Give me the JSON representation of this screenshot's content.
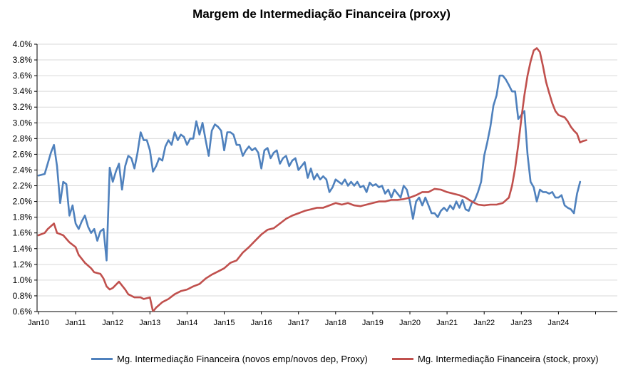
{
  "chart_data": {
    "type": "line",
    "title": "Margem de Intermediação Financeira (proxy)",
    "xlabel": "",
    "ylabel": "",
    "ylim": [
      0.6,
      4.0
    ],
    "yticks": [
      "4.0%",
      "3.8%",
      "3.6%",
      "3.4%",
      "3.2%",
      "3.0%",
      "2.8%",
      "2.6%",
      "2.4%",
      "2.2%",
      "2.0%",
      "1.8%",
      "1.6%",
      "1.4%",
      "1.2%",
      "1.0%",
      "0.8%",
      "0.6%"
    ],
    "xticks": [
      "Jan10",
      "Jan11",
      "Jan12",
      "Jan13",
      "Jan14",
      "Jan15",
      "Jan16",
      "Jan17",
      "Jan18",
      "Jan19",
      "Jan20",
      "Jan21",
      "Jan22",
      "Jan23",
      "Jan24"
    ],
    "grid": true,
    "legend_position": "bottom",
    "series": [
      {
        "name": "Mg. Intermediação Financeira (novos emp/novos dep, Proxy)",
        "color": "#4F81BD",
        "points": [
          [
            0,
            2.33
          ],
          [
            2,
            2.35
          ],
          [
            4,
            2.62
          ],
          [
            5,
            2.72
          ],
          [
            6,
            2.45
          ],
          [
            7,
            1.98
          ],
          [
            8,
            2.25
          ],
          [
            9,
            2.22
          ],
          [
            10,
            1.82
          ],
          [
            11,
            1.95
          ],
          [
            12,
            1.72
          ],
          [
            13,
            1.65
          ],
          [
            14,
            1.75
          ],
          [
            15,
            1.82
          ],
          [
            16,
            1.68
          ],
          [
            17,
            1.6
          ],
          [
            18,
            1.65
          ],
          [
            19,
            1.5
          ],
          [
            20,
            1.62
          ],
          [
            21,
            1.65
          ],
          [
            22,
            1.25
          ],
          [
            23,
            2.43
          ],
          [
            24,
            2.25
          ],
          [
            25,
            2.38
          ],
          [
            26,
            2.48
          ],
          [
            27,
            2.15
          ],
          [
            28,
            2.45
          ],
          [
            29,
            2.58
          ],
          [
            30,
            2.55
          ],
          [
            31,
            2.42
          ],
          [
            32,
            2.62
          ],
          [
            33,
            2.88
          ],
          [
            34,
            2.78
          ],
          [
            35,
            2.78
          ],
          [
            36,
            2.65
          ],
          [
            37,
            2.38
          ],
          [
            38,
            2.45
          ],
          [
            39,
            2.55
          ],
          [
            40,
            2.52
          ],
          [
            41,
            2.7
          ],
          [
            42,
            2.78
          ],
          [
            43,
            2.72
          ],
          [
            44,
            2.88
          ],
          [
            45,
            2.78
          ],
          [
            46,
            2.85
          ],
          [
            47,
            2.82
          ],
          [
            48,
            2.72
          ],
          [
            49,
            2.8
          ],
          [
            50,
            2.8
          ],
          [
            51,
            3.02
          ],
          [
            52,
            2.85
          ],
          [
            53,
            3.0
          ],
          [
            54,
            2.78
          ],
          [
            55,
            2.58
          ],
          [
            56,
            2.9
          ],
          [
            57,
            2.98
          ],
          [
            58,
            2.95
          ],
          [
            59,
            2.9
          ],
          [
            60,
            2.65
          ],
          [
            61,
            2.88
          ],
          [
            62,
            2.88
          ],
          [
            63,
            2.85
          ],
          [
            64,
            2.72
          ],
          [
            65,
            2.72
          ],
          [
            66,
            2.58
          ],
          [
            67,
            2.65
          ],
          [
            68,
            2.7
          ],
          [
            69,
            2.65
          ],
          [
            70,
            2.68
          ],
          [
            71,
            2.62
          ],
          [
            72,
            2.42
          ],
          [
            73,
            2.65
          ],
          [
            74,
            2.68
          ],
          [
            75,
            2.55
          ],
          [
            76,
            2.62
          ],
          [
            77,
            2.65
          ],
          [
            78,
            2.48
          ],
          [
            79,
            2.55
          ],
          [
            80,
            2.58
          ],
          [
            81,
            2.45
          ],
          [
            82,
            2.52
          ],
          [
            83,
            2.55
          ],
          [
            84,
            2.4
          ],
          [
            85,
            2.45
          ],
          [
            86,
            2.5
          ],
          [
            87,
            2.3
          ],
          [
            88,
            2.42
          ],
          [
            89,
            2.28
          ],
          [
            90,
            2.35
          ],
          [
            91,
            2.28
          ],
          [
            92,
            2.32
          ],
          [
            93,
            2.28
          ],
          [
            94,
            2.12
          ],
          [
            95,
            2.18
          ],
          [
            96,
            2.28
          ],
          [
            97,
            2.25
          ],
          [
            98,
            2.22
          ],
          [
            99,
            2.28
          ],
          [
            100,
            2.2
          ],
          [
            101,
            2.25
          ],
          [
            102,
            2.2
          ],
          [
            103,
            2.25
          ],
          [
            104,
            2.18
          ],
          [
            105,
            2.2
          ],
          [
            106,
            2.12
          ],
          [
            107,
            2.24
          ],
          [
            108,
            2.2
          ],
          [
            109,
            2.22
          ],
          [
            110,
            2.18
          ],
          [
            111,
            2.2
          ],
          [
            112,
            2.1
          ],
          [
            113,
            2.15
          ],
          [
            114,
            2.05
          ],
          [
            115,
            2.15
          ],
          [
            116,
            2.1
          ],
          [
            117,
            2.05
          ],
          [
            118,
            2.2
          ],
          [
            119,
            2.15
          ],
          [
            120,
            2.0
          ],
          [
            121,
            1.78
          ],
          [
            122,
            2.0
          ],
          [
            123,
            2.05
          ],
          [
            124,
            1.95
          ],
          [
            125,
            2.05
          ],
          [
            126,
            1.95
          ],
          [
            127,
            1.85
          ],
          [
            128,
            1.85
          ],
          [
            129,
            1.8
          ],
          [
            130,
            1.88
          ],
          [
            131,
            1.92
          ],
          [
            132,
            1.88
          ],
          [
            133,
            1.95
          ],
          [
            134,
            1.9
          ],
          [
            135,
            2.0
          ],
          [
            136,
            1.92
          ],
          [
            137,
            2.02
          ],
          [
            138,
            1.9
          ],
          [
            139,
            1.88
          ],
          [
            140,
            1.98
          ],
          [
            141,
            2.02
          ],
          [
            142,
            2.12
          ],
          [
            143,
            2.25
          ],
          [
            144,
            2.58
          ],
          [
            145,
            2.75
          ],
          [
            146,
            2.95
          ],
          [
            147,
            3.22
          ],
          [
            148,
            3.35
          ],
          [
            149,
            3.6
          ],
          [
            150,
            3.6
          ],
          [
            151,
            3.55
          ],
          [
            152,
            3.48
          ],
          [
            153,
            3.4
          ],
          [
            154,
            3.4
          ],
          [
            155,
            3.05
          ],
          [
            156,
            3.1
          ],
          [
            157,
            3.15
          ],
          [
            158,
            2.6
          ],
          [
            159,
            2.25
          ],
          [
            160,
            2.18
          ],
          [
            161,
            2.0
          ],
          [
            162,
            2.15
          ],
          [
            163,
            2.12
          ],
          [
            164,
            2.12
          ],
          [
            165,
            2.1
          ],
          [
            166,
            2.12
          ],
          [
            167,
            2.05
          ],
          [
            168,
            2.05
          ],
          [
            169,
            2.08
          ],
          [
            170,
            1.95
          ],
          [
            171,
            1.92
          ],
          [
            172,
            1.9
          ],
          [
            173,
            1.85
          ],
          [
            174,
            2.1
          ],
          [
            175,
            2.25
          ]
        ]
      },
      {
        "name": "Mg. Intermediação Financeira (stock, proxy)",
        "color": "#C0504D",
        "points": [
          [
            0,
            1.57
          ],
          [
            2,
            1.6
          ],
          [
            3,
            1.65
          ],
          [
            5,
            1.72
          ],
          [
            6,
            1.6
          ],
          [
            8,
            1.57
          ],
          [
            10,
            1.48
          ],
          [
            12,
            1.42
          ],
          [
            13,
            1.32
          ],
          [
            15,
            1.22
          ],
          [
            17,
            1.15
          ],
          [
            18,
            1.1
          ],
          [
            20,
            1.08
          ],
          [
            21,
            1.02
          ],
          [
            22,
            0.92
          ],
          [
            23,
            0.88
          ],
          [
            24,
            0.9
          ],
          [
            26,
            0.98
          ],
          [
            28,
            0.88
          ],
          [
            29,
            0.82
          ],
          [
            31,
            0.78
          ],
          [
            33,
            0.78
          ],
          [
            34,
            0.76
          ],
          [
            36,
            0.78
          ],
          [
            37,
            0.6
          ],
          [
            38,
            0.65
          ],
          [
            40,
            0.72
          ],
          [
            42,
            0.76
          ],
          [
            44,
            0.82
          ],
          [
            46,
            0.86
          ],
          [
            48,
            0.88
          ],
          [
            50,
            0.92
          ],
          [
            52,
            0.95
          ],
          [
            54,
            1.02
          ],
          [
            56,
            1.07
          ],
          [
            58,
            1.11
          ],
          [
            60,
            1.15
          ],
          [
            62,
            1.22
          ],
          [
            64,
            1.25
          ],
          [
            66,
            1.35
          ],
          [
            68,
            1.42
          ],
          [
            70,
            1.5
          ],
          [
            72,
            1.58
          ],
          [
            74,
            1.64
          ],
          [
            76,
            1.66
          ],
          [
            78,
            1.72
          ],
          [
            80,
            1.78
          ],
          [
            82,
            1.82
          ],
          [
            84,
            1.85
          ],
          [
            86,
            1.88
          ],
          [
            88,
            1.9
          ],
          [
            90,
            1.92
          ],
          [
            92,
            1.92
          ],
          [
            94,
            1.95
          ],
          [
            96,
            1.98
          ],
          [
            98,
            1.96
          ],
          [
            100,
            1.98
          ],
          [
            102,
            1.95
          ],
          [
            104,
            1.94
          ],
          [
            106,
            1.96
          ],
          [
            108,
            1.98
          ],
          [
            110,
            2.0
          ],
          [
            112,
            2.0
          ],
          [
            114,
            2.02
          ],
          [
            116,
            2.02
          ],
          [
            118,
            2.03
          ],
          [
            120,
            2.05
          ],
          [
            122,
            2.08
          ],
          [
            124,
            2.12
          ],
          [
            126,
            2.12
          ],
          [
            128,
            2.16
          ],
          [
            130,
            2.15
          ],
          [
            132,
            2.12
          ],
          [
            134,
            2.1
          ],
          [
            136,
            2.08
          ],
          [
            138,
            2.05
          ],
          [
            140,
            2.0
          ],
          [
            142,
            1.96
          ],
          [
            144,
            1.95
          ],
          [
            146,
            1.96
          ],
          [
            148,
            1.96
          ],
          [
            150,
            1.98
          ],
          [
            152,
            2.05
          ],
          [
            153,
            2.2
          ],
          [
            154,
            2.42
          ],
          [
            155,
            2.72
          ],
          [
            156,
            3.05
          ],
          [
            157,
            3.35
          ],
          [
            158,
            3.6
          ],
          [
            159,
            3.78
          ],
          [
            160,
            3.92
          ],
          [
            161,
            3.95
          ],
          [
            162,
            3.9
          ],
          [
            163,
            3.72
          ],
          [
            164,
            3.52
          ],
          [
            165,
            3.38
          ],
          [
            166,
            3.25
          ],
          [
            167,
            3.15
          ],
          [
            168,
            3.1
          ],
          [
            170,
            3.07
          ],
          [
            171,
            3.02
          ],
          [
            172,
            2.95
          ],
          [
            173,
            2.9
          ],
          [
            174,
            2.86
          ],
          [
            175,
            2.75
          ],
          [
            176,
            2.77
          ],
          [
            177,
            2.78
          ]
        ]
      }
    ]
  }
}
